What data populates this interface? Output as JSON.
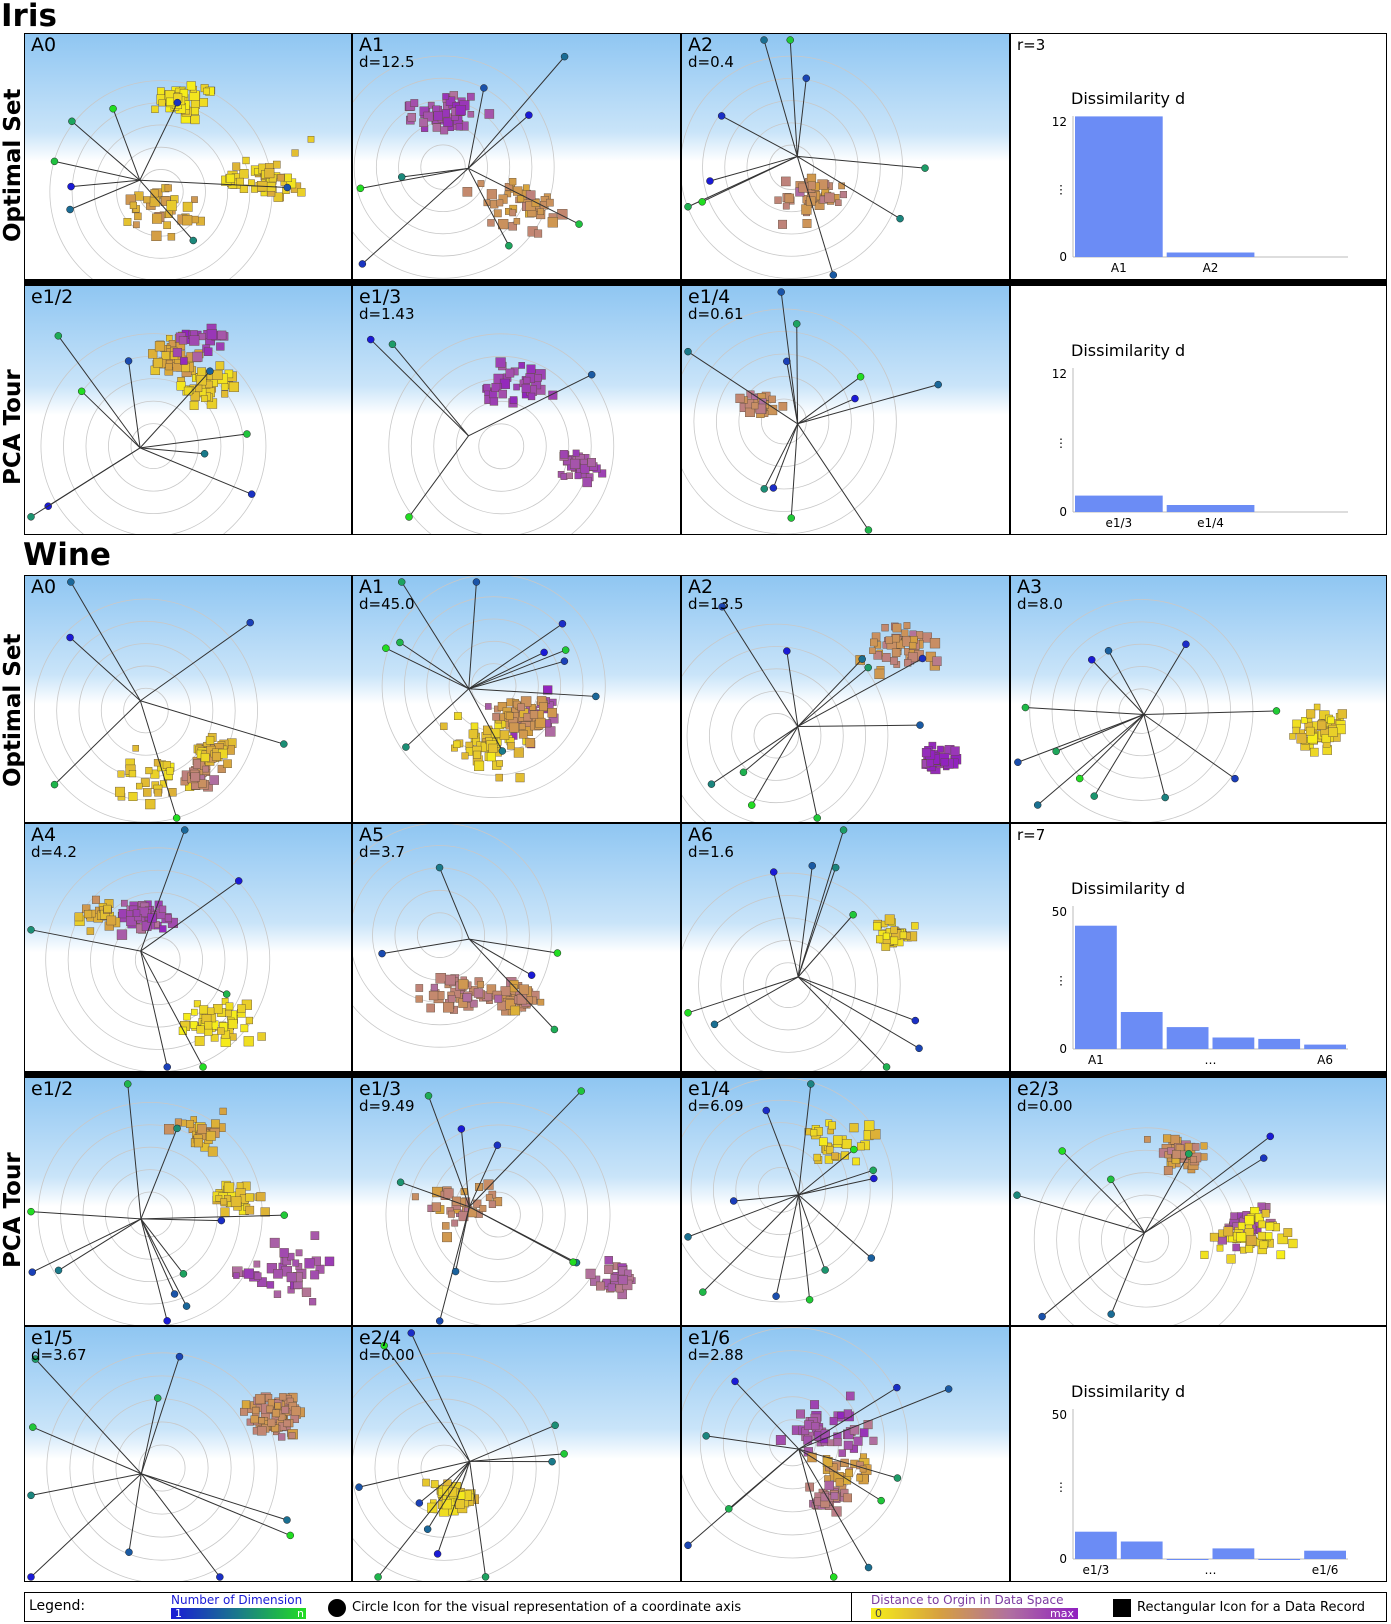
{
  "sections": [
    {
      "title": "Iris",
      "rows": [
        "Optimal Set",
        "PCA Tour"
      ]
    },
    {
      "title": "Wine",
      "rows": [
        "Optimal Set",
        "PCA Tour"
      ]
    }
  ],
  "panels": {
    "iris_opt": [
      {
        "label": "A0",
        "d": ""
      },
      {
        "label": "A1",
        "d": "d=12.5"
      },
      {
        "label": "A2",
        "d": "d=0.4"
      },
      {
        "label": "",
        "d": "r=3"
      }
    ],
    "iris_pca": [
      {
        "label": "e1/2",
        "d": ""
      },
      {
        "label": "e1/3",
        "d": "d=1.43"
      },
      {
        "label": "e1/4",
        "d": "d=0.61"
      },
      {
        "label": "",
        "d": ""
      }
    ],
    "wine_opt1": [
      {
        "label": "A0",
        "d": ""
      },
      {
        "label": "A1",
        "d": "d=45.0"
      },
      {
        "label": "A2",
        "d": "d=13.5"
      },
      {
        "label": "A3",
        "d": "d=8.0"
      }
    ],
    "wine_opt2": [
      {
        "label": "A4",
        "d": "d=4.2"
      },
      {
        "label": "A5",
        "d": "d=3.7"
      },
      {
        "label": "A6",
        "d": "d=1.6"
      },
      {
        "label": "",
        "d": "r=7"
      }
    ],
    "wine_pca1": [
      {
        "label": "e1/2",
        "d": ""
      },
      {
        "label": "e1/3",
        "d": "d=9.49"
      },
      {
        "label": "e1/4",
        "d": "d=6.09"
      },
      {
        "label": "e2/3",
        "d": "d=0.00"
      }
    ],
    "wine_pca2": [
      {
        "label": "e1/5",
        "d": "d=3.67"
      },
      {
        "label": "e2/4",
        "d": "d=0.00"
      },
      {
        "label": "e1/6",
        "d": "d=2.88"
      },
      {
        "label": "",
        "d": ""
      }
    ]
  },
  "legend": {
    "title": "Legend:",
    "dim_label": "Number of Dimension",
    "dim_min": "1",
    "dim_max": "n",
    "circle_text": "Circle Icon for the visual representation of a coordinate axis",
    "dist_label": "Distance to Orgin in Data Space",
    "dist_min": "0",
    "dist_max": "max",
    "rect_text": "Rectangular Icon for a Data Record"
  },
  "colors": {
    "bar": "#6b8cf5",
    "dim_gradient": [
      "#1a1ad6",
      "#1a7a8a",
      "#22dd22"
    ],
    "dist_gradient": [
      "#f6ee1a",
      "#d6a040",
      "#b070a0",
      "#9020c0"
    ]
  },
  "chart_data": [
    {
      "type": "bar",
      "title": "Dissimilarity d",
      "categories": [
        "A1",
        "A2"
      ],
      "category_labels": [
        "A1",
        "A2"
      ],
      "values": [
        12.5,
        0.4
      ],
      "ylim": [
        0,
        12
      ],
      "yticks": [
        "0",
        "⋮",
        "12"
      ]
    },
    {
      "type": "bar",
      "title": "Dissimilarity d",
      "categories": [
        "e1/3",
        "e1/4"
      ],
      "category_labels": [
        "e1/3",
        "e1/4"
      ],
      "values": [
        1.43,
        0.61
      ],
      "ylim": [
        0,
        12
      ],
      "yticks": [
        "0",
        "⋮",
        "12"
      ]
    },
    {
      "type": "bar",
      "title": "Dissimilarity d",
      "categories": [
        "A1",
        "A2",
        "A3",
        "A4",
        "A5",
        "A6"
      ],
      "category_labels": [
        "A1",
        "…",
        "A6"
      ],
      "values": [
        45.0,
        13.5,
        8.0,
        4.2,
        3.7,
        1.6
      ],
      "ylim": [
        0,
        50
      ],
      "yticks": [
        "0",
        "⋮",
        "50"
      ]
    },
    {
      "type": "bar",
      "title": "Dissimilarity d",
      "categories": [
        "e1/3",
        "e1/4",
        "e2/3",
        "e1/5",
        "e2/4",
        "e1/6"
      ],
      "category_labels": [
        "e1/3",
        "…",
        "e1/6"
      ],
      "values": [
        9.49,
        6.09,
        0.0,
        3.67,
        0.0,
        2.88
      ],
      "ylim": [
        0,
        50
      ],
      "yticks": [
        "0",
        "⋮",
        "50"
      ]
    }
  ]
}
